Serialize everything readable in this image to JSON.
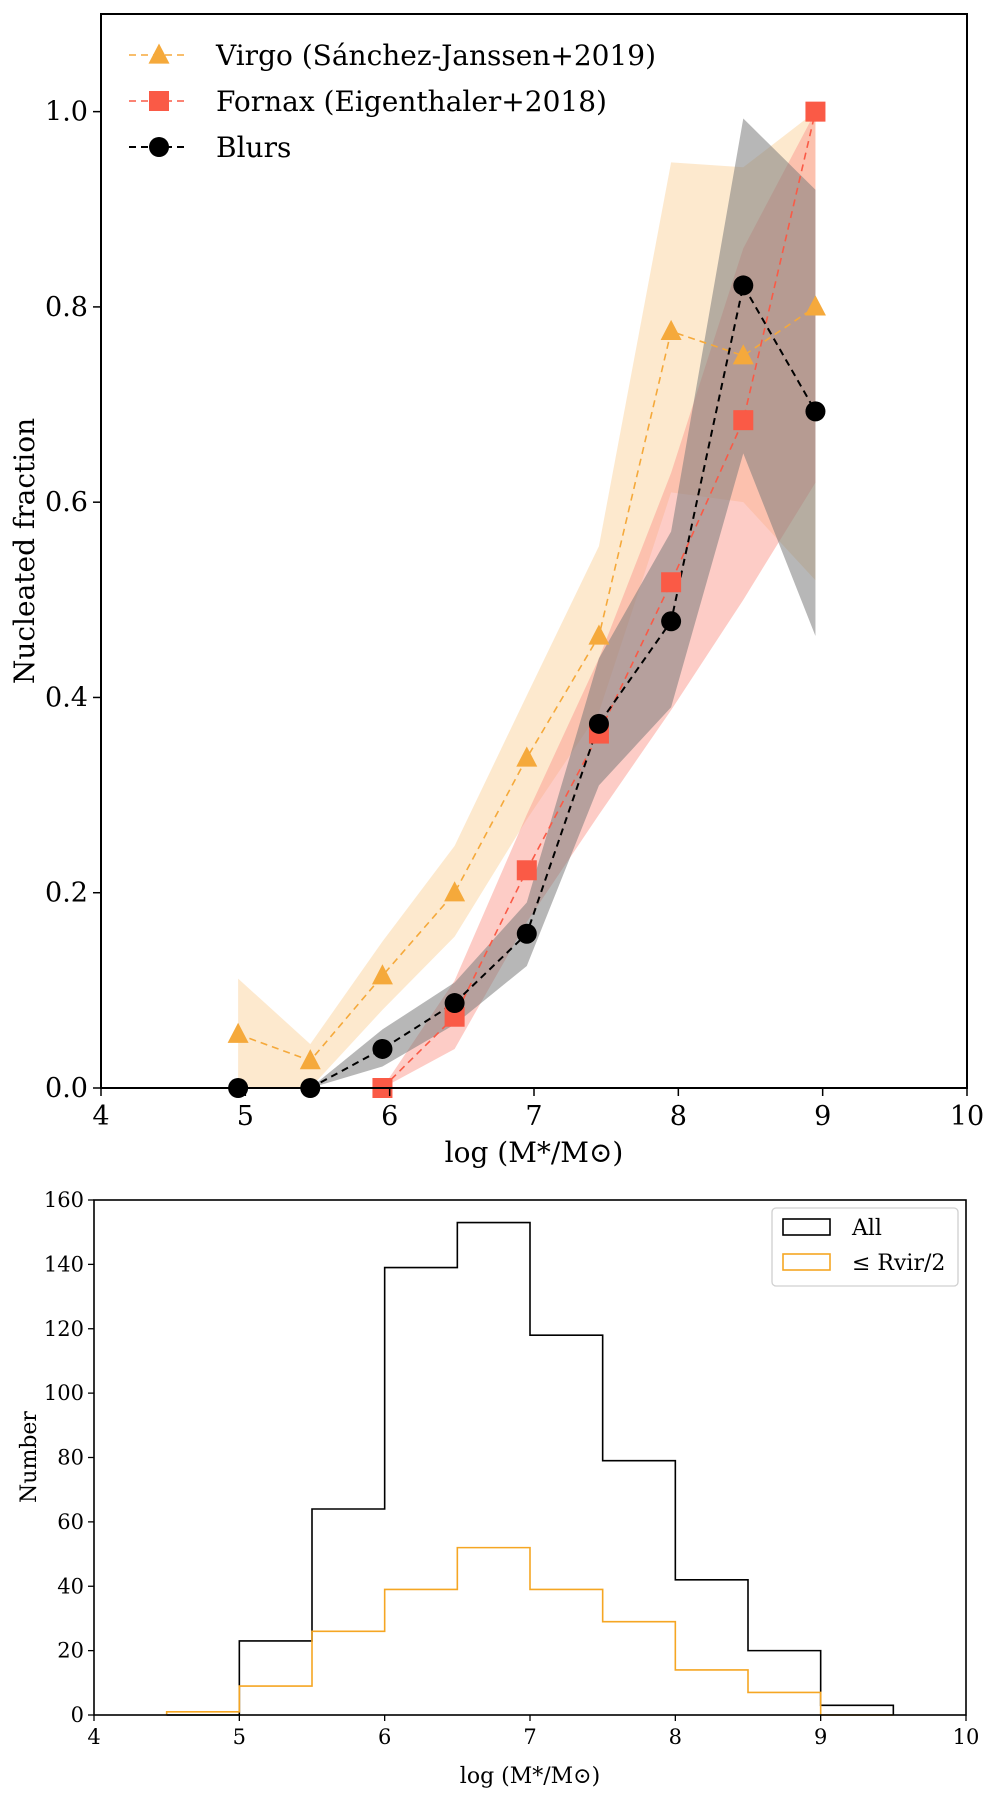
{
  "chart_data": [
    {
      "type": "line",
      "title": "",
      "xlabel": "log (M*/M⊙)",
      "ylabel": "Nucleated fraction",
      "xlim": [
        4,
        10
      ],
      "ylim": [
        0,
        1.1
      ],
      "xticks": [
        "4",
        "5",
        "6",
        "7",
        "8",
        "9",
        "10"
      ],
      "yticks": [
        "0.0",
        "0.2",
        "0.4",
        "0.6",
        "0.8",
        "1.0"
      ],
      "legend_position": "top-left",
      "series": [
        {
          "name": "Virgo (Sánchez-Janssen+2019)",
          "color": "#f5a93b",
          "band_color": "#fbd49e",
          "marker": "triangle",
          "x": [
            4.95,
            5.45,
            5.95,
            6.45,
            6.95,
            7.45,
            7.95,
            8.45,
            8.95
          ],
          "y": [
            0.055,
            0.028,
            0.115,
            0.2,
            0.338,
            0.463,
            0.775,
            0.75,
            0.8
          ],
          "lower": [
            0.0,
            0.0,
            0.08,
            0.155,
            0.275,
            0.385,
            0.61,
            0.6,
            0.52
          ],
          "upper": [
            0.112,
            0.045,
            0.15,
            0.248,
            0.402,
            0.555,
            0.948,
            0.943,
            1.0
          ]
        },
        {
          "name": "Fornax (Eigenthaler+2018)",
          "color": "#fa5a46",
          "band_color": "#fc9a8d",
          "marker": "square",
          "x": [
            5.95,
            6.45,
            6.95,
            7.45,
            7.95,
            8.45,
            8.95
          ],
          "y": [
            0.0,
            0.073,
            0.223,
            0.363,
            0.518,
            0.684,
            1.0
          ],
          "lower": [
            0.0,
            0.04,
            0.17,
            0.28,
            0.387,
            0.5,
            0.62
          ],
          "upper": [
            0.0,
            0.11,
            0.28,
            0.44,
            0.63,
            0.86,
            1.0
          ]
        },
        {
          "name": "Blurs",
          "color": "#000000",
          "band_color": "#7c7c7c",
          "marker": "circle",
          "x": [
            4.95,
            5.45,
            5.95,
            6.45,
            6.95,
            7.45,
            7.95,
            8.45,
            8.95
          ],
          "y": [
            0.0,
            0.0,
            0.04,
            0.087,
            0.158,
            0.373,
            0.478,
            0.822,
            0.693
          ],
          "lower": [
            0.0,
            0.0,
            0.022,
            0.065,
            0.125,
            0.31,
            0.39,
            0.65,
            0.463
          ],
          "upper": [
            0.0,
            0.0,
            0.06,
            0.108,
            0.19,
            0.44,
            0.57,
            0.993,
            0.92
          ]
        }
      ]
    },
    {
      "type": "bar",
      "title": "",
      "xlabel": "log (M*/M⊙)",
      "ylabel": "Number",
      "xlim": [
        4,
        10
      ],
      "ylim": [
        0,
        160
      ],
      "xticks": [
        "4",
        "5",
        "6",
        "7",
        "8",
        "9",
        "10"
      ],
      "yticks": [
        "0",
        "20",
        "40",
        "60",
        "80",
        "100",
        "120",
        "140",
        "160"
      ],
      "legend_position": "top-right",
      "bin_edges": [
        4.5,
        5.0,
        5.5,
        6.0,
        6.5,
        7.0,
        7.5,
        8.0,
        8.5,
        9.0,
        9.5
      ],
      "series": [
        {
          "name": "All",
          "color": "#000000",
          "values": [
            0,
            23,
            64,
            139,
            153,
            118,
            79,
            42,
            20,
            3
          ]
        },
        {
          "name": "≤ Rvir/2",
          "color": "#f5a623",
          "values": [
            1,
            9,
            26,
            39,
            52,
            39,
            29,
            14,
            7,
            0
          ]
        }
      ]
    }
  ]
}
